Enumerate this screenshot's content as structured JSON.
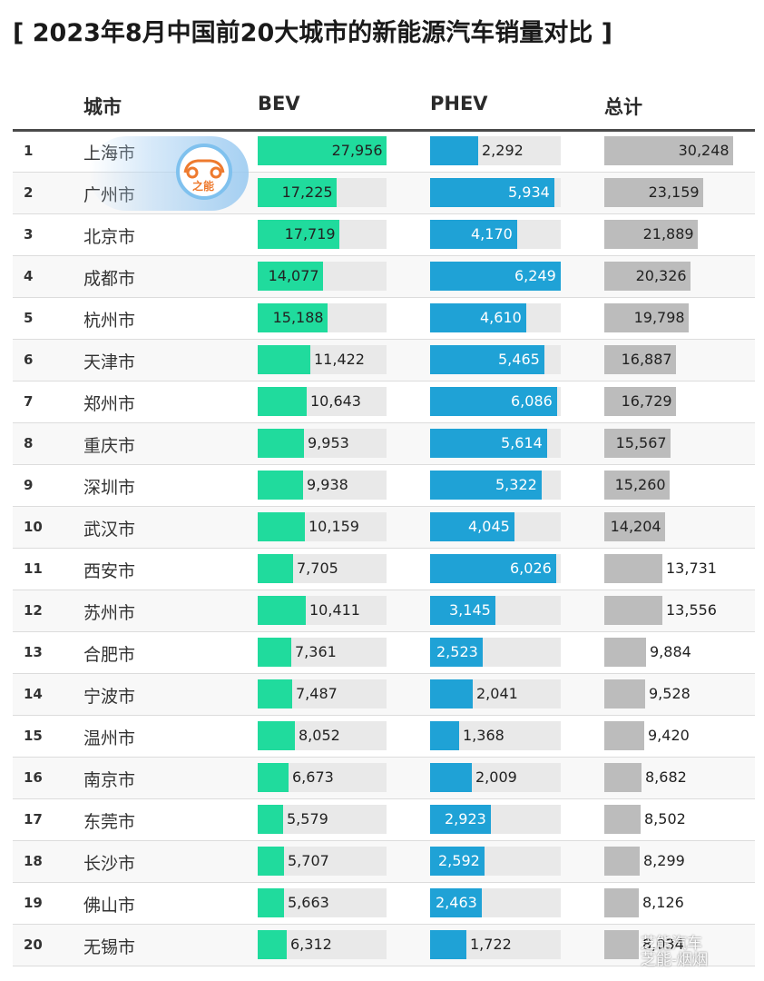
{
  "title": "[ 2023年8月中国前20大城市的新能源汽车销量对比 ]",
  "columns": {
    "city": "城市",
    "bev": "BEV",
    "phev": "PHEV",
    "total": "总计"
  },
  "logo": {
    "text": "之能"
  },
  "watermark": {
    "line1": "芝能汽车",
    "line2": "芝能-烟烟"
  },
  "colors": {
    "bev": "#20db9d",
    "phev": "#1fa2d6",
    "total": "#bcbcbc",
    "track": "#e9e9e9"
  },
  "chart_data": {
    "type": "table",
    "title": "[ 2023年8月中国前20大城市的新能源汽车销量对比 ]",
    "columns": [
      "城市",
      "BEV",
      "PHEV",
      "总计"
    ],
    "max": {
      "bev": 27956,
      "phev": 6249,
      "total": 30248
    },
    "rows": [
      {
        "rank": "1",
        "city": "上海市",
        "bev": 27956,
        "phev": 2292,
        "total": 30248,
        "bev_label": "27,956",
        "phev_label": "2,292",
        "total_label": "30,248"
      },
      {
        "rank": "2",
        "city": "广州市",
        "bev": 17225,
        "phev": 5934,
        "total": 23159,
        "bev_label": "17,225",
        "phev_label": "5,934",
        "total_label": "23,159"
      },
      {
        "rank": "3",
        "city": "北京市",
        "bev": 17719,
        "phev": 4170,
        "total": 21889,
        "bev_label": "17,719",
        "phev_label": "4,170",
        "total_label": "21,889"
      },
      {
        "rank": "4",
        "city": "成都市",
        "bev": 14077,
        "phev": 6249,
        "total": 20326,
        "bev_label": "14,077",
        "phev_label": "6,249",
        "total_label": "20,326"
      },
      {
        "rank": "5",
        "city": "杭州市",
        "bev": 15188,
        "phev": 4610,
        "total": 19798,
        "bev_label": "15,188",
        "phev_label": "4,610",
        "total_label": "19,798"
      },
      {
        "rank": "6",
        "city": "天津市",
        "bev": 11422,
        "phev": 5465,
        "total": 16887,
        "bev_label": "11,422",
        "phev_label": "5,465",
        "total_label": "16,887"
      },
      {
        "rank": "7",
        "city": "郑州市",
        "bev": 10643,
        "phev": 6086,
        "total": 16729,
        "bev_label": "10,643",
        "phev_label": "6,086",
        "total_label": "16,729"
      },
      {
        "rank": "8",
        "city": "重庆市",
        "bev": 9953,
        "phev": 5614,
        "total": 15567,
        "bev_label": "9,953",
        "phev_label": "5,614",
        "total_label": "15,567"
      },
      {
        "rank": "9",
        "city": "深圳市",
        "bev": 9938,
        "phev": 5322,
        "total": 15260,
        "bev_label": "9,938",
        "phev_label": "5,322",
        "total_label": "15,260"
      },
      {
        "rank": "10",
        "city": "武汉市",
        "bev": 10159,
        "phev": 4045,
        "total": 14204,
        "bev_label": "10,159",
        "phev_label": "4,045",
        "total_label": "14,204"
      },
      {
        "rank": "11",
        "city": "西安市",
        "bev": 7705,
        "phev": 6026,
        "total": 13731,
        "bev_label": "7,705",
        "phev_label": "6,026",
        "total_label": "13,731"
      },
      {
        "rank": "12",
        "city": "苏州市",
        "bev": 10411,
        "phev": 3145,
        "total": 13556,
        "bev_label": "10,411",
        "phev_label": "3,145",
        "total_label": "13,556"
      },
      {
        "rank": "13",
        "city": "合肥市",
        "bev": 7361,
        "phev": 2523,
        "total": 9884,
        "bev_label": "7,361",
        "phev_label": "2,523",
        "total_label": "9,884"
      },
      {
        "rank": "14",
        "city": "宁波市",
        "bev": 7487,
        "phev": 2041,
        "total": 9528,
        "bev_label": "7,487",
        "phev_label": "2,041",
        "total_label": "9,528"
      },
      {
        "rank": "15",
        "city": "温州市",
        "bev": 8052,
        "phev": 1368,
        "total": 9420,
        "bev_label": "8,052",
        "phev_label": "1,368",
        "total_label": "9,420"
      },
      {
        "rank": "16",
        "city": "南京市",
        "bev": 6673,
        "phev": 2009,
        "total": 8682,
        "bev_label": "6,673",
        "phev_label": "2,009",
        "total_label": "8,682"
      },
      {
        "rank": "17",
        "city": "东莞市",
        "bev": 5579,
        "phev": 2923,
        "total": 8502,
        "bev_label": "5,579",
        "phev_label": "2,923",
        "total_label": "8,502"
      },
      {
        "rank": "18",
        "city": "长沙市",
        "bev": 5707,
        "phev": 2592,
        "total": 8299,
        "bev_label": "5,707",
        "phev_label": "2,592",
        "total_label": "8,299"
      },
      {
        "rank": "19",
        "city": "佛山市",
        "bev": 5663,
        "phev": 2463,
        "total": 8126,
        "bev_label": "5,663",
        "phev_label": "2,463",
        "total_label": "8,126"
      },
      {
        "rank": "20",
        "city": "无锡市",
        "bev": 6312,
        "phev": 1722,
        "total": 8034,
        "bev_label": "6,312",
        "phev_label": "1,722",
        "total_label": "8,034"
      }
    ]
  }
}
